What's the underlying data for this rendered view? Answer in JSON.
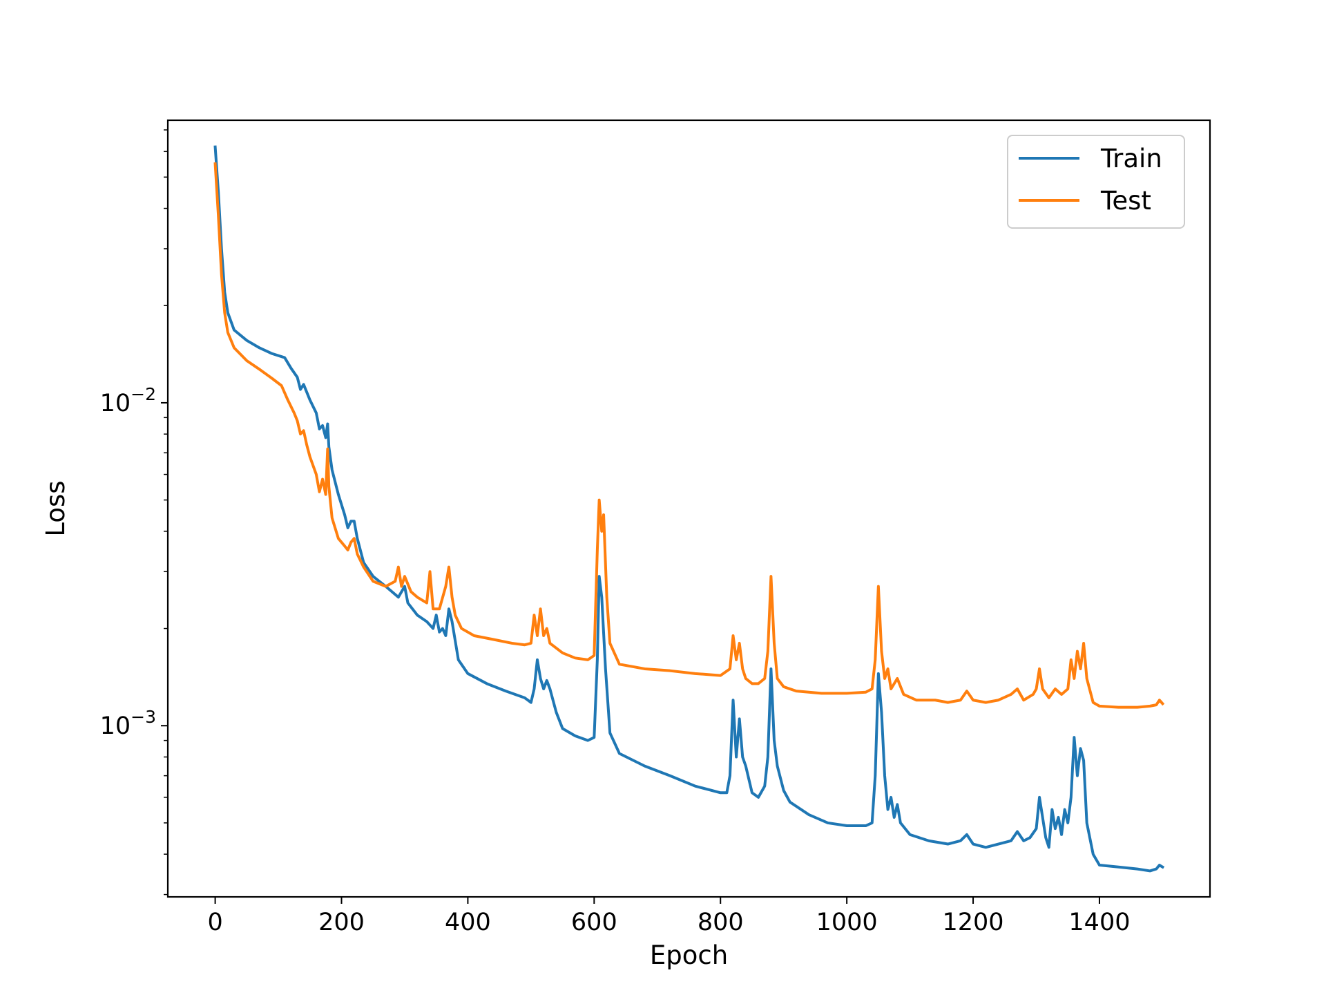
{
  "chart_data": {
    "type": "line",
    "title": "",
    "xlabel": "Epoch",
    "ylabel": "Loss",
    "xlim": [
      -75,
      1575
    ],
    "ylim": [
      0.000295,
      0.075
    ],
    "yscale": "log",
    "grid": false,
    "legend": {
      "position": "top-right",
      "entries": [
        "Train",
        "Test"
      ]
    },
    "x_ticks": [
      {
        "value": 0,
        "label": "0"
      },
      {
        "value": 200,
        "label": "200"
      },
      {
        "value": 400,
        "label": "400"
      },
      {
        "value": 600,
        "label": "600"
      },
      {
        "value": 800,
        "label": "800"
      },
      {
        "value": 1000,
        "label": "1000"
      },
      {
        "value": 1200,
        "label": "1200"
      },
      {
        "value": 1400,
        "label": "1400"
      }
    ],
    "y_ticks": [
      {
        "value": 0.01,
        "base": "10",
        "exponent": "−2"
      },
      {
        "value": 0.001,
        "base": "10",
        "exponent": "−3"
      }
    ],
    "series": [
      {
        "name": "Train",
        "color": "#1f77b4",
        "points": [
          [
            0,
            0.062
          ],
          [
            5,
            0.045
          ],
          [
            10,
            0.03
          ],
          [
            15,
            0.022
          ],
          [
            20,
            0.019
          ],
          [
            30,
            0.0168
          ],
          [
            50,
            0.0156
          ],
          [
            70,
            0.0148
          ],
          [
            90,
            0.0142
          ],
          [
            110,
            0.0138
          ],
          [
            120,
            0.0128
          ],
          [
            130,
            0.012
          ],
          [
            135,
            0.011
          ],
          [
            140,
            0.0114
          ],
          [
            150,
            0.0102
          ],
          [
            160,
            0.0093
          ],
          [
            165,
            0.0083
          ],
          [
            170,
            0.0085
          ],
          [
            175,
            0.0078
          ],
          [
            178,
            0.0086
          ],
          [
            180,
            0.0073
          ],
          [
            185,
            0.0062
          ],
          [
            195,
            0.0052
          ],
          [
            205,
            0.0045
          ],
          [
            210,
            0.0041
          ],
          [
            215,
            0.0043
          ],
          [
            220,
            0.0043
          ],
          [
            225,
            0.0038
          ],
          [
            235,
            0.0032
          ],
          [
            250,
            0.0029
          ],
          [
            270,
            0.0027
          ],
          [
            290,
            0.0025
          ],
          [
            300,
            0.0027
          ],
          [
            305,
            0.0024
          ],
          [
            320,
            0.0022
          ],
          [
            335,
            0.0021
          ],
          [
            345,
            0.002
          ],
          [
            350,
            0.0022
          ],
          [
            355,
            0.00195
          ],
          [
            360,
            0.002
          ],
          [
            365,
            0.0019
          ],
          [
            370,
            0.0023
          ],
          [
            375,
            0.0021
          ],
          [
            385,
            0.0016
          ],
          [
            400,
            0.00145
          ],
          [
            430,
            0.00135
          ],
          [
            460,
            0.00128
          ],
          [
            490,
            0.00122
          ],
          [
            500,
            0.00118
          ],
          [
            505,
            0.0013
          ],
          [
            510,
            0.0016
          ],
          [
            515,
            0.0014
          ],
          [
            520,
            0.0013
          ],
          [
            525,
            0.00138
          ],
          [
            530,
            0.0013
          ],
          [
            540,
            0.0011
          ],
          [
            550,
            0.00098
          ],
          [
            570,
            0.00093
          ],
          [
            590,
            0.0009
          ],
          [
            600,
            0.00092
          ],
          [
            605,
            0.0016
          ],
          [
            608,
            0.0029
          ],
          [
            612,
            0.0025
          ],
          [
            618,
            0.0015
          ],
          [
            625,
            0.00095
          ],
          [
            640,
            0.00082
          ],
          [
            680,
            0.00075
          ],
          [
            720,
            0.0007
          ],
          [
            760,
            0.00065
          ],
          [
            800,
            0.00062
          ],
          [
            810,
            0.00062
          ],
          [
            815,
            0.0007
          ],
          [
            820,
            0.0012
          ],
          [
            825,
            0.0008
          ],
          [
            830,
            0.00105
          ],
          [
            835,
            0.0008
          ],
          [
            840,
            0.00075
          ],
          [
            850,
            0.00062
          ],
          [
            860,
            0.0006
          ],
          [
            870,
            0.00065
          ],
          [
            875,
            0.0008
          ],
          [
            880,
            0.0015
          ],
          [
            885,
            0.0009
          ],
          [
            890,
            0.00075
          ],
          [
            900,
            0.00063
          ],
          [
            910,
            0.00058
          ],
          [
            940,
            0.00053
          ],
          [
            970,
            0.0005
          ],
          [
            1000,
            0.00049
          ],
          [
            1030,
            0.00049
          ],
          [
            1040,
            0.0005
          ],
          [
            1045,
            0.0007
          ],
          [
            1050,
            0.00145
          ],
          [
            1055,
            0.0011
          ],
          [
            1060,
            0.0007
          ],
          [
            1065,
            0.00055
          ],
          [
            1070,
            0.0006
          ],
          [
            1075,
            0.00052
          ],
          [
            1080,
            0.00057
          ],
          [
            1085,
            0.0005
          ],
          [
            1100,
            0.00046
          ],
          [
            1130,
            0.00044
          ],
          [
            1160,
            0.00043
          ],
          [
            1180,
            0.00044
          ],
          [
            1190,
            0.00046
          ],
          [
            1200,
            0.00043
          ],
          [
            1220,
            0.00042
          ],
          [
            1240,
            0.00043
          ],
          [
            1260,
            0.00044
          ],
          [
            1270,
            0.00047
          ],
          [
            1280,
            0.00044
          ],
          [
            1290,
            0.00045
          ],
          [
            1300,
            0.00048
          ],
          [
            1305,
            0.0006
          ],
          [
            1310,
            0.00052
          ],
          [
            1315,
            0.00045
          ],
          [
            1320,
            0.00042
          ],
          [
            1325,
            0.00055
          ],
          [
            1330,
            0.00048
          ],
          [
            1335,
            0.00052
          ],
          [
            1340,
            0.00046
          ],
          [
            1345,
            0.00055
          ],
          [
            1350,
            0.0005
          ],
          [
            1355,
            0.0006
          ],
          [
            1360,
            0.00092
          ],
          [
            1365,
            0.0007
          ],
          [
            1370,
            0.00085
          ],
          [
            1375,
            0.00078
          ],
          [
            1380,
            0.0005
          ],
          [
            1390,
            0.0004
          ],
          [
            1400,
            0.00037
          ],
          [
            1430,
            0.000365
          ],
          [
            1460,
            0.00036
          ],
          [
            1480,
            0.000355
          ],
          [
            1490,
            0.00036
          ],
          [
            1495,
            0.00037
          ],
          [
            1500,
            0.000365
          ]
        ]
      },
      {
        "name": "Test",
        "color": "#ff7f0e",
        "points": [
          [
            0,
            0.055
          ],
          [
            5,
            0.038
          ],
          [
            10,
            0.025
          ],
          [
            15,
            0.019
          ],
          [
            20,
            0.0165
          ],
          [
            30,
            0.0148
          ],
          [
            50,
            0.0135
          ],
          [
            70,
            0.0127
          ],
          [
            90,
            0.0119
          ],
          [
            105,
            0.0113
          ],
          [
            115,
            0.0102
          ],
          [
            125,
            0.0093
          ],
          [
            130,
            0.0088
          ],
          [
            135,
            0.008
          ],
          [
            140,
            0.0082
          ],
          [
            145,
            0.0074
          ],
          [
            150,
            0.0068
          ],
          [
            160,
            0.006
          ],
          [
            165,
            0.0053
          ],
          [
            170,
            0.0058
          ],
          [
            175,
            0.0052
          ],
          [
            178,
            0.0072
          ],
          [
            180,
            0.0055
          ],
          [
            185,
            0.0044
          ],
          [
            195,
            0.0038
          ],
          [
            205,
            0.0036
          ],
          [
            210,
            0.0035
          ],
          [
            215,
            0.0037
          ],
          [
            220,
            0.0038
          ],
          [
            225,
            0.0034
          ],
          [
            235,
            0.0031
          ],
          [
            250,
            0.0028
          ],
          [
            270,
            0.0027
          ],
          [
            285,
            0.0028
          ],
          [
            290,
            0.0031
          ],
          [
            295,
            0.0027
          ],
          [
            300,
            0.0029
          ],
          [
            310,
            0.0026
          ],
          [
            320,
            0.0025
          ],
          [
            335,
            0.0024
          ],
          [
            340,
            0.003
          ],
          [
            345,
            0.0023
          ],
          [
            355,
            0.0023
          ],
          [
            365,
            0.0027
          ],
          [
            370,
            0.0031
          ],
          [
            375,
            0.0025
          ],
          [
            380,
            0.0022
          ],
          [
            390,
            0.002
          ],
          [
            410,
            0.0019
          ],
          [
            440,
            0.00185
          ],
          [
            470,
            0.0018
          ],
          [
            490,
            0.00178
          ],
          [
            500,
            0.0018
          ],
          [
            505,
            0.0022
          ],
          [
            510,
            0.0019
          ],
          [
            515,
            0.0023
          ],
          [
            520,
            0.0019
          ],
          [
            525,
            0.002
          ],
          [
            530,
            0.0018
          ],
          [
            550,
            0.00168
          ],
          [
            570,
            0.00162
          ],
          [
            590,
            0.0016
          ],
          [
            600,
            0.00165
          ],
          [
            605,
            0.0035
          ],
          [
            608,
            0.005
          ],
          [
            612,
            0.004
          ],
          [
            615,
            0.0045
          ],
          [
            620,
            0.0025
          ],
          [
            625,
            0.0018
          ],
          [
            640,
            0.00155
          ],
          [
            680,
            0.0015
          ],
          [
            720,
            0.00148
          ],
          [
            760,
            0.00145
          ],
          [
            800,
            0.00143
          ],
          [
            815,
            0.0015
          ],
          [
            820,
            0.0019
          ],
          [
            825,
            0.0016
          ],
          [
            830,
            0.0018
          ],
          [
            835,
            0.0015
          ],
          [
            840,
            0.0014
          ],
          [
            850,
            0.00135
          ],
          [
            860,
            0.00135
          ],
          [
            870,
            0.0014
          ],
          [
            875,
            0.0017
          ],
          [
            880,
            0.0029
          ],
          [
            885,
            0.0018
          ],
          [
            890,
            0.0014
          ],
          [
            900,
            0.00132
          ],
          [
            920,
            0.00128
          ],
          [
            960,
            0.00126
          ],
          [
            1000,
            0.00126
          ],
          [
            1030,
            0.00127
          ],
          [
            1040,
            0.0013
          ],
          [
            1045,
            0.0016
          ],
          [
            1050,
            0.0027
          ],
          [
            1055,
            0.0017
          ],
          [
            1060,
            0.0014
          ],
          [
            1065,
            0.0015
          ],
          [
            1070,
            0.0013
          ],
          [
            1080,
            0.0014
          ],
          [
            1090,
            0.00125
          ],
          [
            1110,
            0.0012
          ],
          [
            1140,
            0.0012
          ],
          [
            1160,
            0.00118
          ],
          [
            1180,
            0.0012
          ],
          [
            1190,
            0.00128
          ],
          [
            1200,
            0.0012
          ],
          [
            1220,
            0.00118
          ],
          [
            1240,
            0.0012
          ],
          [
            1260,
            0.00125
          ],
          [
            1270,
            0.0013
          ],
          [
            1280,
            0.0012
          ],
          [
            1295,
            0.00125
          ],
          [
            1300,
            0.0013
          ],
          [
            1305,
            0.0015
          ],
          [
            1310,
            0.0013
          ],
          [
            1320,
            0.00122
          ],
          [
            1330,
            0.0013
          ],
          [
            1340,
            0.00125
          ],
          [
            1350,
            0.0013
          ],
          [
            1355,
            0.0016
          ],
          [
            1360,
            0.0014
          ],
          [
            1365,
            0.0017
          ],
          [
            1370,
            0.0015
          ],
          [
            1375,
            0.0018
          ],
          [
            1380,
            0.0014
          ],
          [
            1390,
            0.00118
          ],
          [
            1400,
            0.00115
          ],
          [
            1430,
            0.00114
          ],
          [
            1460,
            0.00114
          ],
          [
            1480,
            0.00115
          ],
          [
            1490,
            0.00116
          ],
          [
            1495,
            0.0012
          ],
          [
            1500,
            0.00117
          ]
        ]
      }
    ]
  }
}
